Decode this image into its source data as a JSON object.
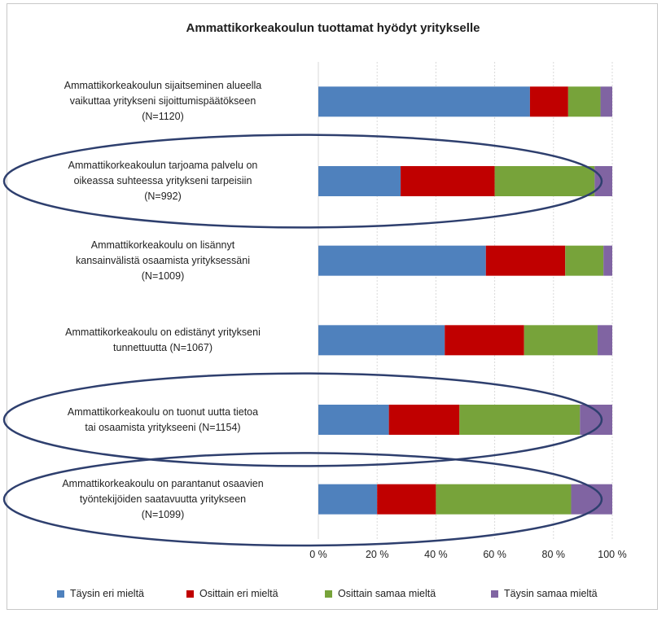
{
  "chart_data": {
    "type": "bar",
    "orientation": "horizontal",
    "stacked": "percent",
    "title": "Ammattikorkeakoulun tuottamat hyödyt yritykselle",
    "categories": [
      "Ammattikorkeakoulun sijaitseminen alueella vaikuttaa yritykseni sijoittumispäätökseen (N=1120)",
      "Ammattikorkeakoulun tarjoama palvelu on oikeassa suhteessa yritykseni tarpeisiin (N=992)",
      "Ammattikorkeakoulu on lisännyt kansainvälistä osaamista yrityksessäni (N=1009)",
      "Ammattikorkeakoulu on edistänyt yritykseni tunnettuutta (N=1067)",
      "Ammattikorkeakoulu on tuonut uutta tietoa tai osaamista yritykseeni (N=1154)",
      "Ammattikorkeakoulu on parantanut osaavien työntekijöiden saatavuutta yritykseen (N=1099)"
    ],
    "category_lines": [
      [
        "Ammattikorkeakoulun sijaitseminen alueella",
        "vaikuttaa yritykseni sijoittumispäätökseen",
        "(N=1120)"
      ],
      [
        "Ammattikorkeakoulun tarjoama palvelu on",
        "oikeassa suhteessa yritykseni tarpeisiin",
        "(N=992)"
      ],
      [
        "Ammattikorkeakoulu on lisännyt",
        "kansainvälistä osaamista yrityksessäni",
        "(N=1009)"
      ],
      [
        "Ammattikorkeakoulu on edistänyt yritykseni",
        "tunnettuutta (N=1067)"
      ],
      [
        "Ammattikorkeakoulu on tuonut uutta tietoa",
        "tai osaamista yritykseeni (N=1154)"
      ],
      [
        "Ammattikorkeakoulu on parantanut osaavien",
        "työntekijöiden saatavuutta yritykseen",
        "(N=1099)"
      ]
    ],
    "series": [
      {
        "name": "Täysin eri mieltä",
        "color": "#4f81bd",
        "values": [
          72,
          28,
          57,
          43,
          24,
          20
        ]
      },
      {
        "name": "Osittain eri mieltä",
        "color": "#c00000",
        "values": [
          13,
          32,
          27,
          27,
          24,
          20
        ]
      },
      {
        "name": "Osittain samaa mieltä",
        "color": "#77a33a",
        "values": [
          11,
          34,
          13,
          25,
          41,
          46
        ]
      },
      {
        "name": "Täysin samaa mieltä",
        "color": "#8064a2",
        "values": [
          4,
          6,
          3,
          5,
          11,
          14
        ]
      }
    ],
    "xlim": [
      0,
      100
    ],
    "xticks": [
      "0 %",
      "20 %",
      "40 %",
      "60 %",
      "80 %",
      "100 %"
    ],
    "grid": true,
    "legend_position": "bottom",
    "highlighted_categories": [
      1,
      4,
      5
    ],
    "highlight_color": "#2e3f6e"
  }
}
